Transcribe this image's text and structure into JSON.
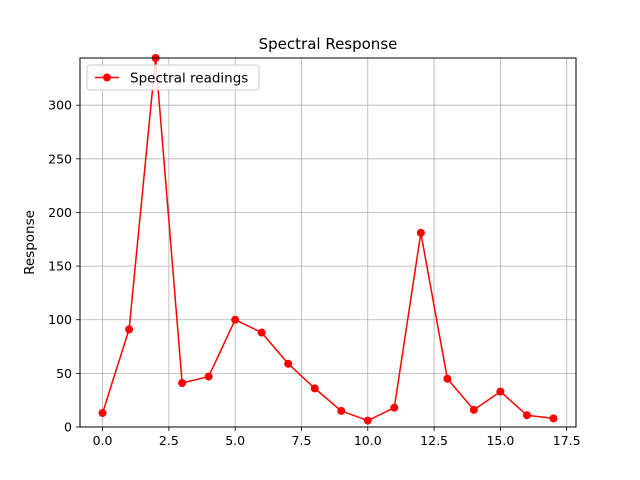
{
  "chart_data": {
    "type": "line",
    "title": "Spectral Response",
    "xlabel": "",
    "ylabel": "Response",
    "x": [
      0,
      1,
      2,
      3,
      4,
      5,
      6,
      7,
      8,
      9,
      10,
      11,
      12,
      13,
      14,
      15,
      16,
      17
    ],
    "series": [
      {
        "name": "Spectral readings",
        "color": "#ff0000",
        "marker": "circle",
        "values": [
          13,
          91,
          344,
          41,
          47,
          100,
          88,
          59,
          36,
          15,
          6,
          18,
          181,
          45,
          16,
          33,
          11,
          8
        ]
      }
    ],
    "xlim": [
      -0.85,
      17.85
    ],
    "ylim": [
      0,
      344
    ],
    "xticks": [
      0,
      2.5,
      5,
      7.5,
      10,
      12.5,
      15,
      17.5
    ],
    "xtick_labels": [
      "0.0",
      "2.5",
      "5.0",
      "7.5",
      "10.0",
      "12.5",
      "15.0",
      "17.5"
    ],
    "yticks": [
      0,
      50,
      100,
      150,
      200,
      250,
      300
    ],
    "ytick_labels": [
      "0",
      "50",
      "100",
      "150",
      "200",
      "250",
      "300"
    ],
    "grid": true,
    "legend_position": "upper-left"
  }
}
